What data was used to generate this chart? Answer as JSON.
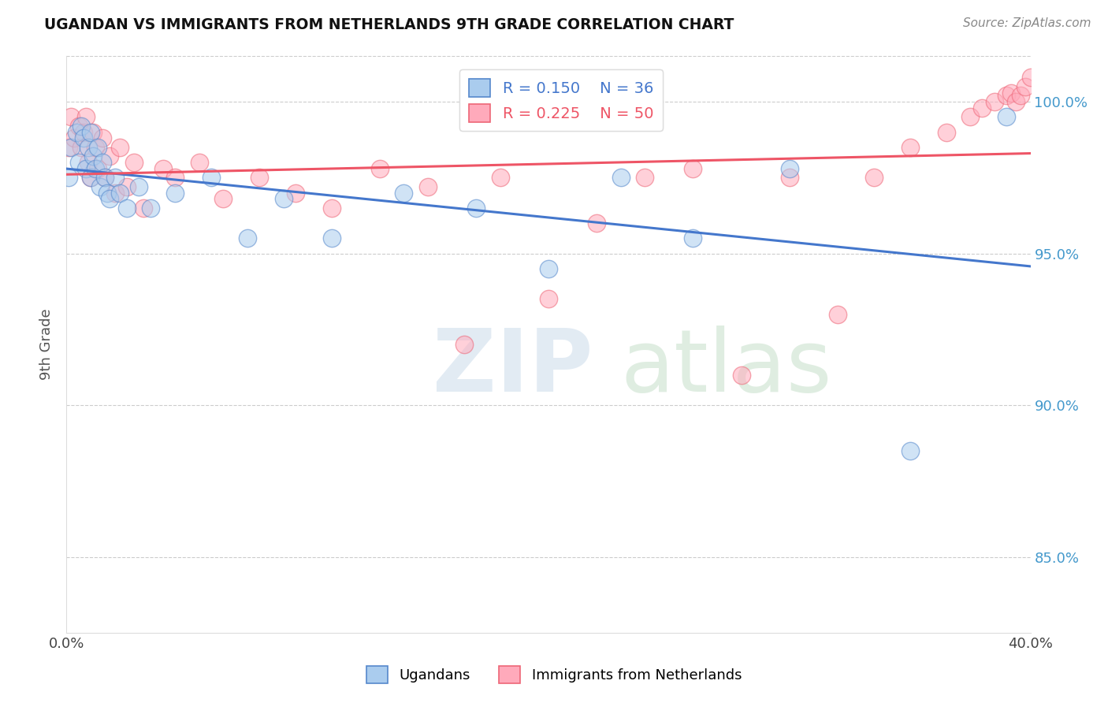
{
  "title": "UGANDAN VS IMMIGRANTS FROM NETHERLANDS 9TH GRADE CORRELATION CHART",
  "source": "Source: ZipAtlas.com",
  "ylabel": "9th Grade",
  "xlim": [
    0.0,
    40.0
  ],
  "ylim": [
    82.5,
    101.5
  ],
  "yticks": [
    85.0,
    90.0,
    95.0,
    100.0
  ],
  "ytick_labels": [
    "85.0%",
    "90.0%",
    "95.0%",
    "100.0%"
  ],
  "legend_r_blue": "R = 0.150",
  "legend_n_blue": "N = 36",
  "legend_r_pink": "R = 0.225",
  "legend_n_pink": "N = 50",
  "blue_fill": "#AACCEE",
  "blue_edge": "#5588CC",
  "pink_fill": "#FFAABB",
  "pink_edge": "#EE6677",
  "blue_line": "#4477CC",
  "pink_line": "#EE5566",
  "legend_labels": [
    "Ugandans",
    "Immigrants from Netherlands"
  ],
  "ugandan_x": [
    0.1,
    0.2,
    0.4,
    0.5,
    0.6,
    0.7,
    0.8,
    0.9,
    1.0,
    1.0,
    1.1,
    1.2,
    1.3,
    1.4,
    1.5,
    1.6,
    1.7,
    1.8,
    2.0,
    2.2,
    2.5,
    3.0,
    3.5,
    4.5,
    6.0,
    7.5,
    9.0,
    11.0,
    14.0,
    17.0,
    20.0,
    23.0,
    26.0,
    30.0,
    35.0,
    39.0
  ],
  "ugandan_y": [
    97.5,
    98.5,
    99.0,
    98.0,
    99.2,
    98.8,
    97.8,
    98.5,
    97.5,
    99.0,
    98.2,
    97.8,
    98.5,
    97.2,
    98.0,
    97.5,
    97.0,
    96.8,
    97.5,
    97.0,
    96.5,
    97.2,
    96.5,
    97.0,
    97.5,
    95.5,
    96.8,
    95.5,
    97.0,
    96.5,
    94.5,
    97.5,
    95.5,
    97.8,
    88.5,
    99.5
  ],
  "netherlands_x": [
    0.1,
    0.2,
    0.3,
    0.5,
    0.6,
    0.7,
    0.8,
    0.9,
    1.0,
    1.1,
    1.2,
    1.3,
    1.5,
    1.6,
    1.8,
    2.0,
    2.2,
    2.5,
    2.8,
    3.2,
    4.0,
    4.5,
    5.5,
    6.5,
    8.0,
    9.5,
    11.0,
    13.0,
    15.0,
    16.5,
    18.0,
    20.0,
    22.0,
    24.0,
    26.0,
    28.0,
    30.0,
    32.0,
    33.5,
    35.0,
    36.5,
    37.5,
    38.0,
    38.5,
    39.0,
    39.2,
    39.4,
    39.6,
    39.8,
    40.0
  ],
  "netherlands_y": [
    98.5,
    99.5,
    98.8,
    99.2,
    98.5,
    99.0,
    99.5,
    98.0,
    97.5,
    99.0,
    98.5,
    97.8,
    98.8,
    97.5,
    98.2,
    97.0,
    98.5,
    97.2,
    98.0,
    96.5,
    97.8,
    97.5,
    98.0,
    96.8,
    97.5,
    97.0,
    96.5,
    97.8,
    97.2,
    92.0,
    97.5,
    93.5,
    96.0,
    97.5,
    97.8,
    91.0,
    97.5,
    93.0,
    97.5,
    98.5,
    99.0,
    99.5,
    99.8,
    100.0,
    100.2,
    100.3,
    100.0,
    100.2,
    100.5,
    100.8
  ]
}
